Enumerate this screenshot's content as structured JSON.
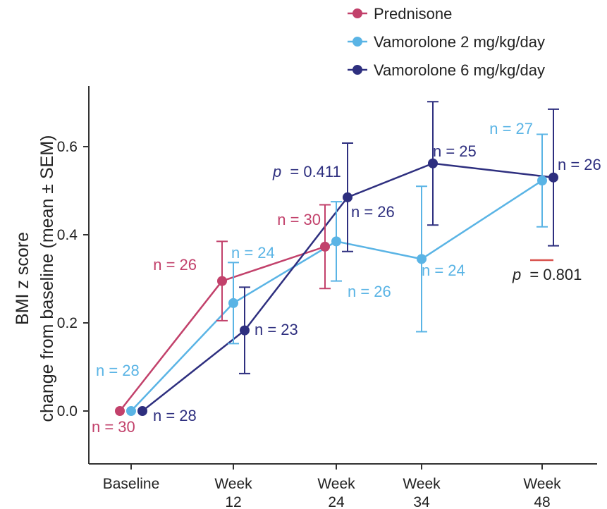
{
  "chart_data": {
    "type": "line",
    "ylabel_line1": "BMI z score",
    "ylabel_line2": "change from baseline (mean ± SEM)",
    "ylim": [
      -0.12,
      0.72
    ],
    "yticks": [
      0.0,
      0.2,
      0.4,
      0.6
    ],
    "ytick_labels": [
      "0.0",
      "0.2",
      "0.4",
      "0.6"
    ],
    "categories": [
      "Baseline",
      "Week\n12",
      "Week\n24",
      "Week\n34",
      "Week\n48"
    ],
    "category_time": [
      0,
      12,
      24,
      34,
      48
    ],
    "legend_position": "top-right",
    "grid": false,
    "colors": {
      "prednisone": "#c2416b",
      "vam2": "#5ab4e5",
      "vam6": "#2e2f7f",
      "axis": "#333333",
      "text": "#222222"
    },
    "series": [
      {
        "name": "Prednisone",
        "color": "#c2416b",
        "points": [
          {
            "x": "Baseline",
            "y": 0.0,
            "err": 0.0,
            "n_label": "n = 30"
          },
          {
            "x": "Week 12",
            "y": 0.295,
            "err": 0.09,
            "n_label": "n = 26"
          },
          {
            "x": "Week 24",
            "y": 0.373,
            "err": 0.095,
            "n_label": "n = 30"
          }
        ]
      },
      {
        "name": "Vamorolone 2 mg/kg/day",
        "color": "#5ab4e5",
        "points": [
          {
            "x": "Baseline",
            "y": 0.0,
            "err": 0.0,
            "n_label": "n = 28"
          },
          {
            "x": "Week 12",
            "y": 0.245,
            "err": 0.092,
            "n_label": "n = 24"
          },
          {
            "x": "Week 24",
            "y": 0.385,
            "err": 0.09,
            "n_label": "n = 26"
          },
          {
            "x": "Week 34",
            "y": 0.345,
            "err": 0.165,
            "n_label": "n = 24"
          },
          {
            "x": "Week 48",
            "y": 0.523,
            "err": 0.105,
            "n_label": "n = 27"
          }
        ]
      },
      {
        "name": "Vamorolone 6 mg/kg/day",
        "color": "#2e2f7f",
        "points": [
          {
            "x": "Baseline",
            "y": 0.0,
            "err": 0.0,
            "n_label": "n = 28"
          },
          {
            "x": "Week 12",
            "y": 0.183,
            "err": 0.098,
            "n_label": "n = 23"
          },
          {
            "x": "Week 24",
            "y": 0.485,
            "err": 0.123,
            "n_label": "n = 26"
          },
          {
            "x": "Week 34",
            "y": 0.562,
            "err": 0.14,
            "n_label": "n = 25"
          },
          {
            "x": "Week 48",
            "y": 0.53,
            "err": 0.155,
            "n_label": "n = 26"
          }
        ]
      }
    ],
    "annotations": [
      {
        "label": "p = 0.411",
        "p_prefix": "p",
        "p_value": "= 0.411",
        "color": "#2e2f7f"
      },
      {
        "label": "p = 0.801",
        "p_prefix": "p",
        "p_value": "= 0.801",
        "color": "#222222"
      }
    ]
  }
}
